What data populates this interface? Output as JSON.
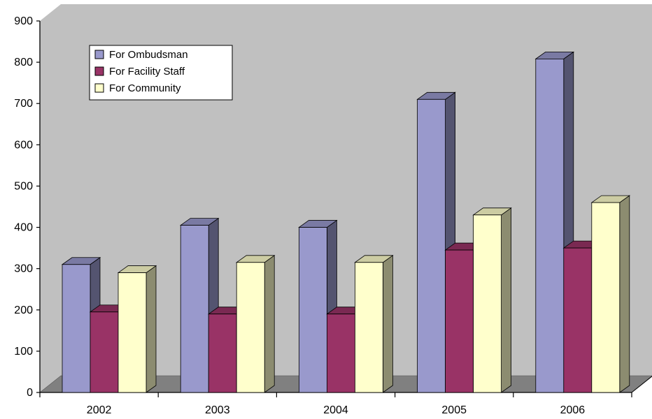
{
  "chart_data": {
    "type": "bar",
    "style": "3d-clustered",
    "categories": [
      "2002",
      "2003",
      "2004",
      "2005",
      "2006"
    ],
    "series": [
      {
        "name": "For Ombudsman",
        "values": [
          310,
          405,
          400,
          710,
          808
        ],
        "color": "#9999cc"
      },
      {
        "name": "For Facility Staff",
        "values": [
          195,
          190,
          190,
          345,
          350
        ],
        "color": "#993366"
      },
      {
        "name": "For Community",
        "values": [
          290,
          315,
          315,
          430,
          460
        ],
        "color": "#ffffcc"
      }
    ],
    "yticks": [
      "0",
      "100",
      "200",
      "300",
      "400",
      "500",
      "600",
      "700",
      "800",
      "900"
    ],
    "ylim": [
      0,
      900
    ],
    "legend_position": "top-left",
    "grid": false,
    "wall_color": "#c0c0c0",
    "floor_color": "#808080"
  }
}
